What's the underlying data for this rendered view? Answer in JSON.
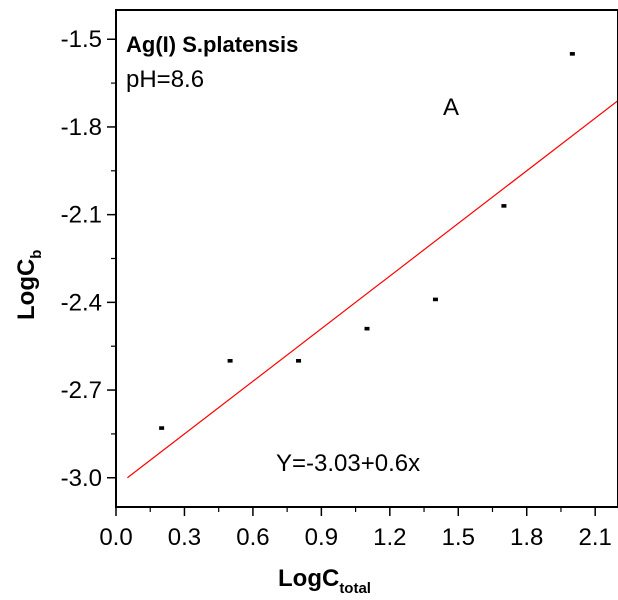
{
  "chart_data": {
    "type": "scatter",
    "title": "Ag(I) S.platensis",
    "subtitle": "pH=8.6",
    "panel_label": "A",
    "equation": "Y=-3.03+0.6x",
    "xlabel": "LogC",
    "xlabel_sub": "total",
    "ylabel": "LogC",
    "ylabel_sub": "b",
    "xlim": [
      0.0,
      2.2
    ],
    "ylim": [
      -3.1,
      -1.4
    ],
    "x_ticks": [
      0.0,
      0.3,
      0.6,
      0.9,
      1.2,
      1.5,
      1.8,
      2.1
    ],
    "x_tick_labels": [
      "0.0",
      "0.3",
      "0.6",
      "0.9",
      "1.2",
      "1.5",
      "1.8",
      "2.1"
    ],
    "y_ticks": [
      -1.5,
      -1.8,
      -2.1,
      -2.4,
      -2.7,
      -3.0
    ],
    "y_tick_labels": [
      "-1.5",
      "-1.8",
      "-2.1",
      "-2.4",
      "-2.7",
      "-3.0"
    ],
    "points": {
      "x": [
        0.2,
        0.5,
        0.8,
        1.1,
        1.4,
        1.7,
        2.0
      ],
      "y": [
        -2.83,
        -2.6,
        -2.6,
        -2.49,
        -2.39,
        -2.07,
        -1.55
      ]
    },
    "fit": {
      "intercept": -3.03,
      "slope": 0.6,
      "x_range": [
        0.05,
        2.2
      ],
      "color": "#ff0000"
    },
    "grid": false,
    "legend": "none"
  }
}
